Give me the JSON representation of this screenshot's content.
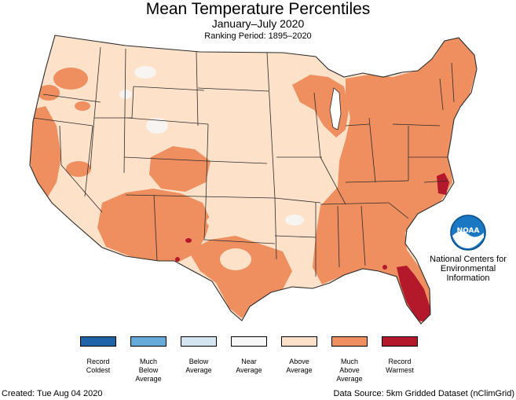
{
  "header": {
    "title": "Mean Temperature Percentiles",
    "subtitle": "January–July 2020",
    "ranking_period": "Ranking Period: 1895–2020"
  },
  "colors": {
    "record_coldest": "#1f63a8",
    "much_below": "#66aad9",
    "below": "#d4e5f2",
    "near": "#f7f7f7",
    "above": "#fde1c9",
    "much_above": "#ef8f5f",
    "record_warmest": "#b4182b",
    "border": "#2b2b2b",
    "noaa_blue": "#1a78c2"
  },
  "legend": {
    "items": [
      {
        "label": "Record\nColdest",
        "color": "#1f63a8"
      },
      {
        "label": "Much\nBelow\nAverage",
        "color": "#66aad9"
      },
      {
        "label": "Below\nAverage",
        "color": "#d4e5f2"
      },
      {
        "label": "Near\nAverage",
        "color": "#f7f7f7"
      },
      {
        "label": "Above\nAverage",
        "color": "#fde1c9"
      },
      {
        "label": "Much\nAbove\nAverage",
        "color": "#ef8f5f"
      },
      {
        "label": "Record\nWarmest",
        "color": "#b4182b"
      }
    ]
  },
  "agency": {
    "logo_icon": "noaa-logo-icon",
    "logo_text": "NOAA",
    "name": "National Centers for Environmental Information"
  },
  "footer": {
    "created": "Created: Tue Aug 04 2020",
    "source": "Data Source: 5km Gridded Dataset (nClimGrid)"
  }
}
